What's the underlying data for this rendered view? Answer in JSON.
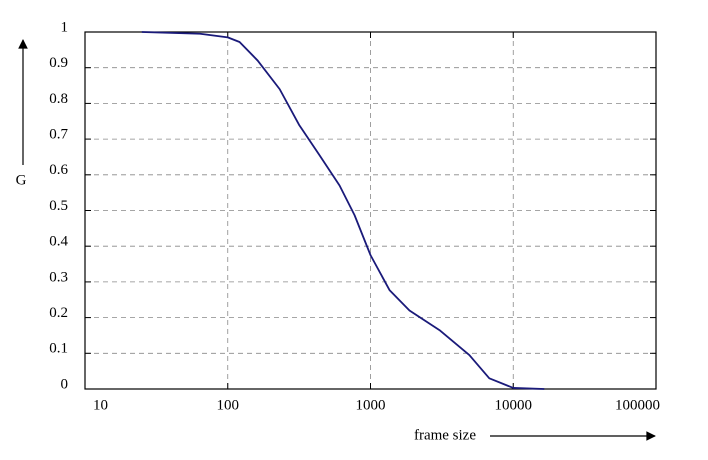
{
  "chart_data": {
    "type": "line",
    "x_label": "frame size",
    "y_label": "G",
    "xscale": "log",
    "xlim": [
      10,
      100000
    ],
    "xticks": [
      10,
      100,
      1000,
      10000,
      100000
    ],
    "ylim": [
      0,
      1
    ],
    "yticks": [
      0,
      0.1,
      0.2,
      0.3,
      0.4,
      0.5,
      0.6,
      0.7,
      0.8,
      0.9,
      1
    ],
    "grid": true,
    "series": [
      {
        "color": "#1a1a7a",
        "x": [
          25,
          64,
          100,
          121,
          162,
          231,
          316,
          439,
          607,
          773,
          1000,
          1359,
          1875,
          3041,
          4925,
          6795,
          10000,
          16500
        ],
        "values": [
          1,
          0.995,
          0.985,
          0.972,
          0.92,
          0.84,
          0.74,
          0.655,
          0.57,
          0.487,
          0.375,
          0.277,
          0.22,
          0.165,
          0.095,
          0.03,
          0.003,
          0
        ]
      }
    ]
  }
}
